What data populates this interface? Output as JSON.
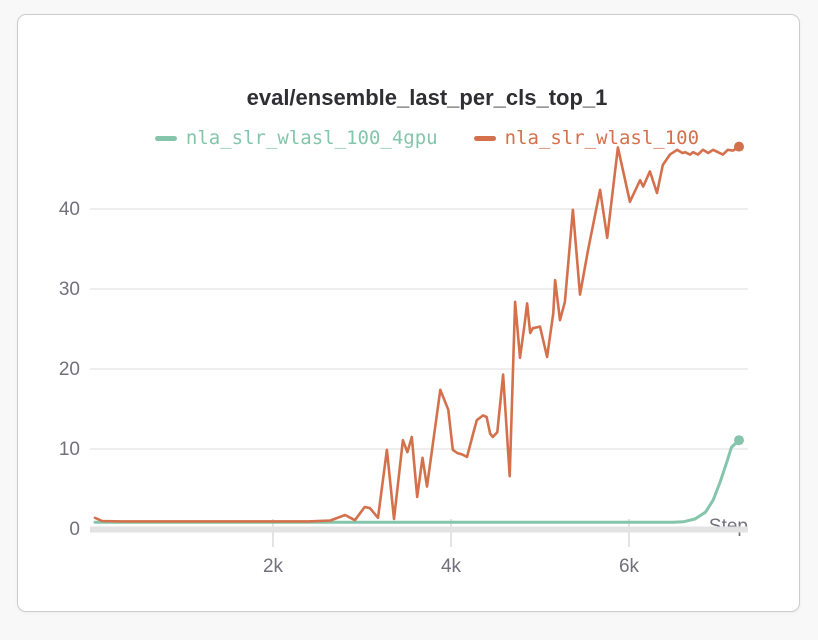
{
  "panel": {
    "title": "eval/ensemble_last_per_cls_top_1"
  },
  "legend": {
    "items": [
      {
        "label": "nla_slr_wlasl_100_4gpu",
        "color": "#85c5ac"
      },
      {
        "label": "nla_slr_wlasl_100",
        "color": "#d4714c"
      }
    ]
  },
  "colors": {
    "teal_series": "#85c5ac",
    "orange_series": "#d4714c",
    "axis_text": "#71717c",
    "title_text": "#2f2f33"
  },
  "chart_data": {
    "type": "line",
    "title": "eval/ensemble_last_per_cls_top_1",
    "xlabel": "Step",
    "ylabel": "",
    "xlim": [
      0,
      7350
    ],
    "ylim": [
      0,
      48
    ],
    "grid": "horizontal",
    "legend_position": "top-center",
    "x_ticks": [
      {
        "value": 2000,
        "label": "2k"
      },
      {
        "value": 4000,
        "label": "4k"
      },
      {
        "value": 6000,
        "label": "6k"
      }
    ],
    "y_ticks": [
      {
        "value": 0,
        "label": "0"
      },
      {
        "value": 10,
        "label": "10"
      },
      {
        "value": 20,
        "label": "20"
      },
      {
        "value": 30,
        "label": "30"
      },
      {
        "value": 40,
        "label": "40"
      }
    ],
    "series": [
      {
        "name": "nla_slr_wlasl_100_4gpu",
        "color": "#85c5ac",
        "end_dot": true,
        "final_value": 11.1,
        "points": [
          [
            0,
            0.85
          ],
          [
            500,
            0.85
          ],
          [
            1000,
            0.85
          ],
          [
            1500,
            0.85
          ],
          [
            2000,
            0.85
          ],
          [
            2500,
            0.85
          ],
          [
            3000,
            0.85
          ],
          [
            3500,
            0.85
          ],
          [
            4000,
            0.85
          ],
          [
            4500,
            0.85
          ],
          [
            5000,
            0.85
          ],
          [
            5500,
            0.85
          ],
          [
            6000,
            0.85
          ],
          [
            6300,
            0.85
          ],
          [
            6500,
            0.85
          ],
          [
            6610,
            0.9
          ],
          [
            6740,
            1.25
          ],
          [
            6860,
            2.1
          ],
          [
            6945,
            3.6
          ],
          [
            7020,
            5.75
          ],
          [
            7100,
            8.4
          ],
          [
            7150,
            10.2
          ],
          [
            7236,
            11.1
          ]
        ]
      },
      {
        "name": "nla_slr_wlasl_100",
        "color": "#d4714c",
        "end_dot": true,
        "final_value": 47.8,
        "points": [
          [
            0,
            1.4
          ],
          [
            80,
            1.0
          ],
          [
            300,
            0.95
          ],
          [
            600,
            0.95
          ],
          [
            900,
            0.95
          ],
          [
            1200,
            0.95
          ],
          [
            1500,
            0.95
          ],
          [
            1800,
            0.95
          ],
          [
            2100,
            0.95
          ],
          [
            2400,
            0.95
          ],
          [
            2640,
            1.05
          ],
          [
            2810,
            1.75
          ],
          [
            2870,
            1.4
          ],
          [
            2920,
            1.1
          ],
          [
            3030,
            2.75
          ],
          [
            3090,
            2.6
          ],
          [
            3180,
            1.4
          ],
          [
            3280,
            9.9
          ],
          [
            3360,
            1.25
          ],
          [
            3460,
            11.1
          ],
          [
            3510,
            9.6
          ],
          [
            3560,
            11.5
          ],
          [
            3620,
            4.0
          ],
          [
            3680,
            8.9
          ],
          [
            3730,
            5.3
          ],
          [
            3880,
            17.4
          ],
          [
            3970,
            14.9
          ],
          [
            4020,
            9.9
          ],
          [
            4070,
            9.5
          ],
          [
            4130,
            9.3
          ],
          [
            4180,
            9.0
          ],
          [
            4250,
            12.0
          ],
          [
            4290,
            13.6
          ],
          [
            4360,
            14.2
          ],
          [
            4400,
            14.0
          ],
          [
            4440,
            11.9
          ],
          [
            4470,
            11.5
          ],
          [
            4520,
            12.1
          ],
          [
            4585,
            19.3
          ],
          [
            4660,
            6.6
          ],
          [
            4720,
            28.4
          ],
          [
            4775,
            21.4
          ],
          [
            4830,
            25.9
          ],
          [
            4855,
            28.2
          ],
          [
            4890,
            24.5
          ],
          [
            4920,
            25.1
          ],
          [
            5000,
            25.3
          ],
          [
            5080,
            21.5
          ],
          [
            5150,
            27.0
          ],
          [
            5170,
            31.1
          ],
          [
            5225,
            26.1
          ],
          [
            5280,
            28.4
          ],
          [
            5370,
            39.9
          ],
          [
            5450,
            29.3
          ],
          [
            5540,
            34.9
          ],
          [
            5675,
            42.4
          ],
          [
            5755,
            36.4
          ],
          [
            5875,
            47.7
          ],
          [
            6010,
            40.9
          ],
          [
            6125,
            43.6
          ],
          [
            6160,
            42.8
          ],
          [
            6235,
            44.7
          ],
          [
            6315,
            42.0
          ],
          [
            6380,
            45.5
          ],
          [
            6460,
            46.8
          ],
          [
            6540,
            47.4
          ],
          [
            6600,
            47.0
          ],
          [
            6630,
            47.1
          ],
          [
            6685,
            46.8
          ],
          [
            6720,
            47.1
          ],
          [
            6775,
            46.8
          ],
          [
            6830,
            47.4
          ],
          [
            6890,
            47.0
          ],
          [
            6945,
            47.4
          ],
          [
            7000,
            47.1
          ],
          [
            7055,
            46.8
          ],
          [
            7110,
            47.4
          ],
          [
            7170,
            47.3
          ],
          [
            7236,
            47.8
          ]
        ]
      }
    ]
  }
}
